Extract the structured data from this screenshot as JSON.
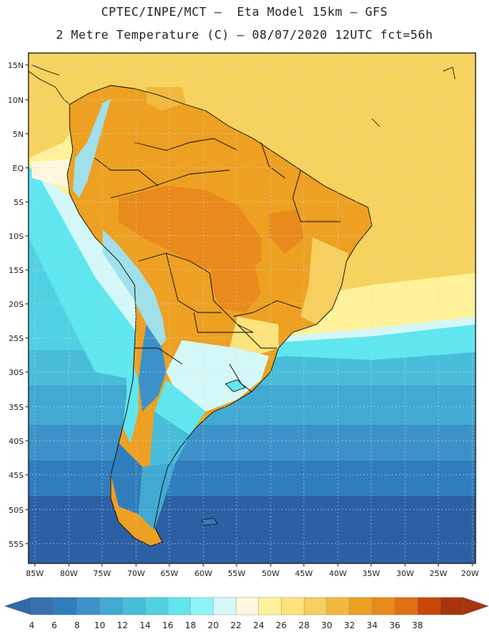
{
  "header": {
    "line1": "CPTEC/INPE/MCT –  Eta Model 15km – GFS",
    "line2": "2 Metre Temperature (C) – 08/07/2020 12UTC fct=56h"
  },
  "map": {
    "latitude_labels": [
      "15N",
      "10N",
      "5N",
      "EQ",
      "5S",
      "10S",
      "15S",
      "20S",
      "25S",
      "30S",
      "35S",
      "40S",
      "45S",
      "50S",
      "55S"
    ],
    "longitude_labels": [
      "85W",
      "80W",
      "75W",
      "70W",
      "65W",
      "60W",
      "55W",
      "50W",
      "45W",
      "40W",
      "35W",
      "30W",
      "25W",
      "20W"
    ]
  },
  "colorbar": {
    "labels": [
      "4",
      "6",
      "8",
      "10",
      "12",
      "14",
      "16",
      "18",
      "20",
      "22",
      "24",
      "26",
      "28",
      "30",
      "32",
      "34",
      "36",
      "38"
    ],
    "colors": [
      "#3a6fb0",
      "#2f7dbd",
      "#3c92c8",
      "#41a9d2",
      "#48bdd9",
      "#50d1e2",
      "#5fe6ee",
      "#8ff3f5",
      "#d4f8f7",
      "#fff7e0",
      "#fff29a",
      "#fde37b",
      "#f6cf5e",
      "#f0b93e",
      "#eda021",
      "#e88a1c",
      "#e06e12",
      "#c94708",
      "#a8330c"
    ],
    "low_color": "#2f68ad",
    "high_color": "#a8330c"
  },
  "legend_colors": {
    "ocean_deep": "#2c5fa4",
    "ocean_mid": "#2f7dbd",
    "ocean_light": "#48bdd9",
    "cyan": "#5fe6ee",
    "atlantic_warm": "#f6d35e",
    "tropical_land": "#eda021",
    "hot_interior": "#e88a1c",
    "andes": "#9fe0ea"
  }
}
